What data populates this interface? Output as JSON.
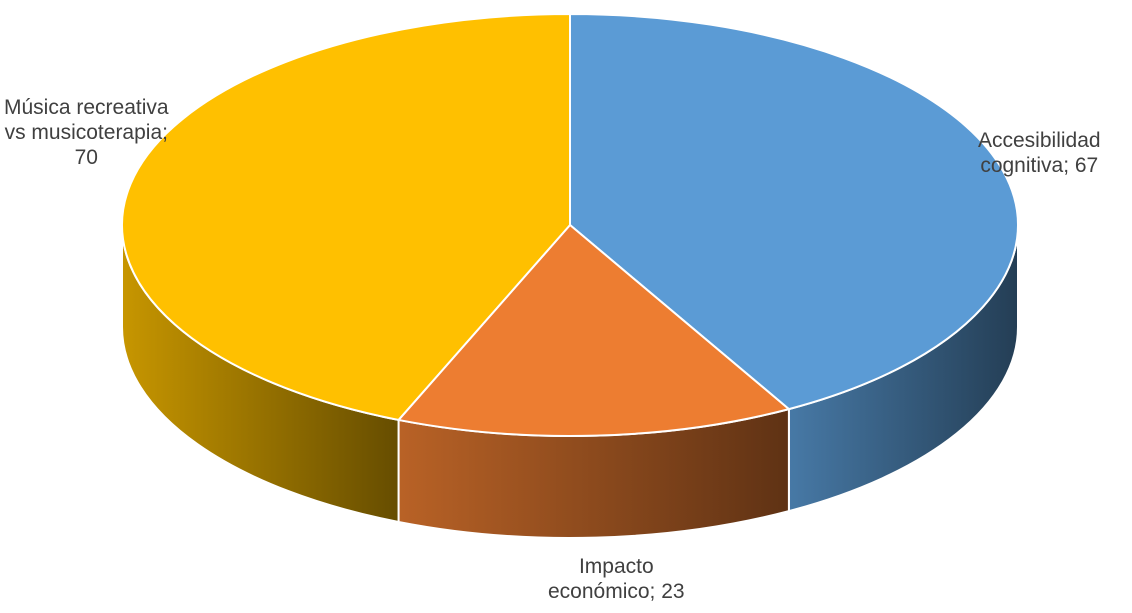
{
  "chart_data": {
    "type": "pie",
    "style": "3d",
    "slices": [
      {
        "label_lines": [
          "Accesibilidad",
          "cognitiva; 67"
        ],
        "name": "Accesibilidad cognitiva",
        "value": 67,
        "color": "#5B9BD5"
      },
      {
        "label_lines": [
          "Impacto",
          "económico; 23"
        ],
        "name": "Impacto económico",
        "value": 23,
        "color": "#ED7D31"
      },
      {
        "label_lines": [
          "Música recreativa",
          "vs musicoterapia;",
          "70"
        ],
        "name": "Música recreativa vs musicoterapia",
        "value": 70,
        "color": "#FFC000"
      }
    ],
    "legend": "none",
    "data_labels": "outside"
  }
}
